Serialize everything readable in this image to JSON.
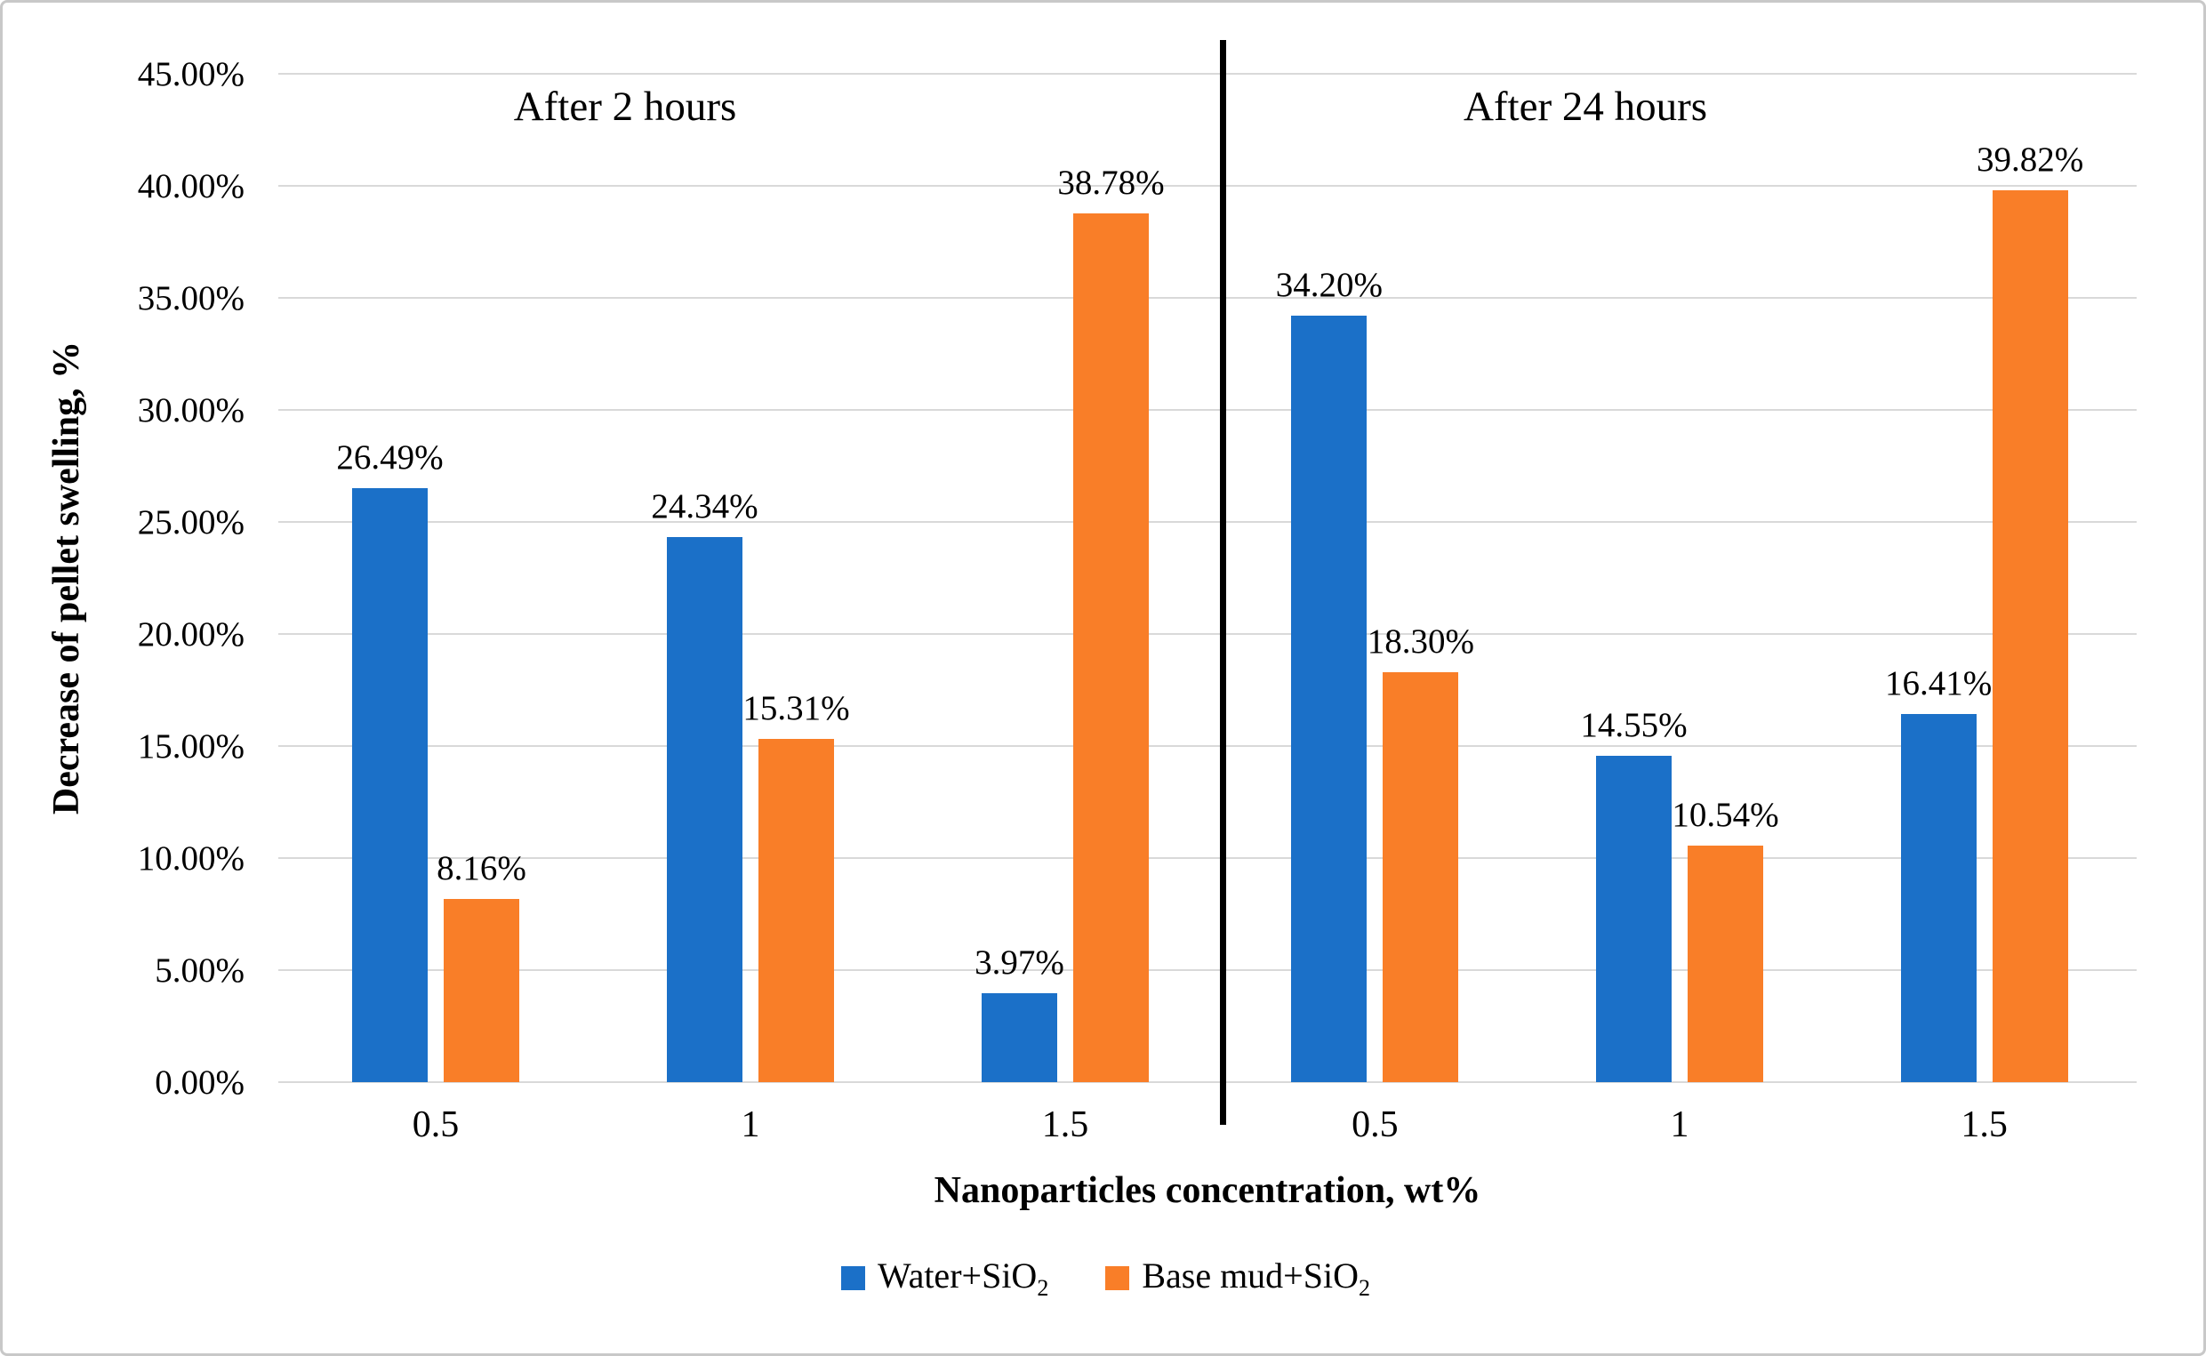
{
  "chart_data": {
    "type": "bar",
    "ylim": [
      0,
      45
    ],
    "ytick_step": 5,
    "ytick_labels": [
      "0.00%",
      "5.00%",
      "10.00%",
      "15.00%",
      "20.00%",
      "25.00%",
      "30.00%",
      "35.00%",
      "40.00%",
      "45.00%"
    ],
    "ylabel": "Decrease of pellet swelling, %",
    "xlabel": "Nanoparticles concentration, wt%",
    "grid": true,
    "legend_position": "bottom",
    "panels": [
      {
        "title": "After 2 hours",
        "categories": [
          "0.5",
          "1",
          "1.5"
        ],
        "series": [
          {
            "name": "Water+SiO2",
            "values": [
              26.49,
              24.34,
              3.97
            ],
            "labels": [
              "26.49%",
              "24.34%",
              "3.97%"
            ]
          },
          {
            "name": "Base mud+SiO2",
            "values": [
              8.16,
              15.31,
              38.78
            ],
            "labels": [
              "8.16%",
              "15.31%",
              "38.78%"
            ]
          }
        ]
      },
      {
        "title": "After 24 hours",
        "categories": [
          "0.5",
          "1",
          "1.5"
        ],
        "series": [
          {
            "name": "Water+SiO2",
            "values": [
              34.2,
              14.55,
              16.41
            ],
            "labels": [
              "34.20%",
              "14.55%",
              "16.41%"
            ]
          },
          {
            "name": "Base mud+SiO2",
            "values": [
              18.3,
              10.54,
              39.82
            ],
            "labels": [
              "18.30%",
              "10.54%",
              "39.82%"
            ]
          }
        ]
      }
    ],
    "legend": [
      {
        "label": "Water+SiO",
        "sub": "2",
        "color": "#1b70c8"
      },
      {
        "label": "Base mud+SiO",
        "sub": "2",
        "color": "#f97e28"
      }
    ],
    "colors": {
      "water_sio2": "#1b70c8",
      "base_mud_sio2": "#f97e28",
      "gridline": "#d9d9d9",
      "panel_divider": "#000000",
      "figure_border": "#c8c8c8"
    }
  }
}
